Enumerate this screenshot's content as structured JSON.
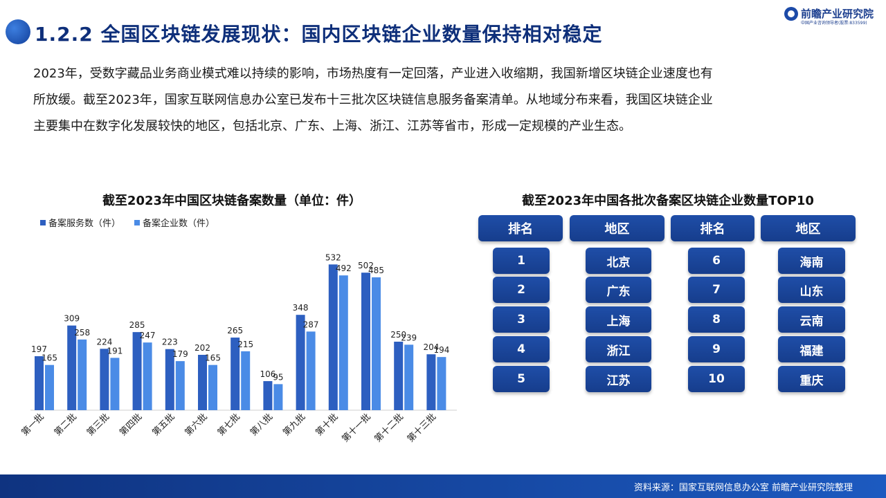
{
  "header": {
    "title": "1.2.2 全国区块链发展现状：国内区块链企业数量保持相对稳定",
    "logo_text": "前瞻产业研究院",
    "logo_sub": "中国产业咨询领导者(股票:833599)"
  },
  "intro_lines": [
    "2023年，受数字藏品业务商业模式难以持续的影响，市场热度有一定回落，产业进入收缩期，我国新增区块链企业速度也有",
    "所放缓。截至2023年，国家互联网信息办公室已发布十三批次区块链信息服务备案清单。从地域分布来看，我国区块链企业",
    "主要集中在数字化发展较快的地区，包括北京、广东、上海、浙江、江苏等省市，形成一定规模的产业生态。"
  ],
  "chart_data": {
    "type": "bar",
    "title": "截至2023年中国区块链备案数量（单位：件）",
    "categories": [
      "第一批",
      "第二批",
      "第三批",
      "第四批",
      "第五批",
      "第六批",
      "第七批",
      "第八批",
      "第九批",
      "第十批",
      "第十一批",
      "第十二批",
      "第十三批"
    ],
    "series": [
      {
        "name": "备案服务数（件）",
        "color": "#2d5fc0",
        "values": [
          197,
          309,
          224,
          285,
          223,
          202,
          265,
          106,
          348,
          532,
          502,
          250,
          204
        ]
      },
      {
        "name": "备案企业数（件）",
        "color": "#4a8be6",
        "values": [
          165,
          258,
          191,
          247,
          179,
          165,
          215,
          95,
          287,
          492,
          485,
          239,
          194
        ]
      }
    ],
    "ylim": [
      0,
      600
    ],
    "legend_position": "top-left",
    "grid": false
  },
  "table": {
    "title": "截至2023年中国各批次备案区块链企业数量TOP10",
    "headers": [
      "排名",
      "地区",
      "排名",
      "地区"
    ],
    "left_ranks": [
      "1",
      "2",
      "3",
      "4",
      "5"
    ],
    "left_regions": [
      "北京",
      "广东",
      "上海",
      "浙江",
      "江苏"
    ],
    "right_ranks": [
      "6",
      "7",
      "8",
      "9",
      "10"
    ],
    "right_regions": [
      "海南",
      "山东",
      "云南",
      "福建",
      "重庆"
    ]
  },
  "footer": {
    "source": "资料来源：国家互联网信息办公室  前瞻产业研究院整理"
  }
}
